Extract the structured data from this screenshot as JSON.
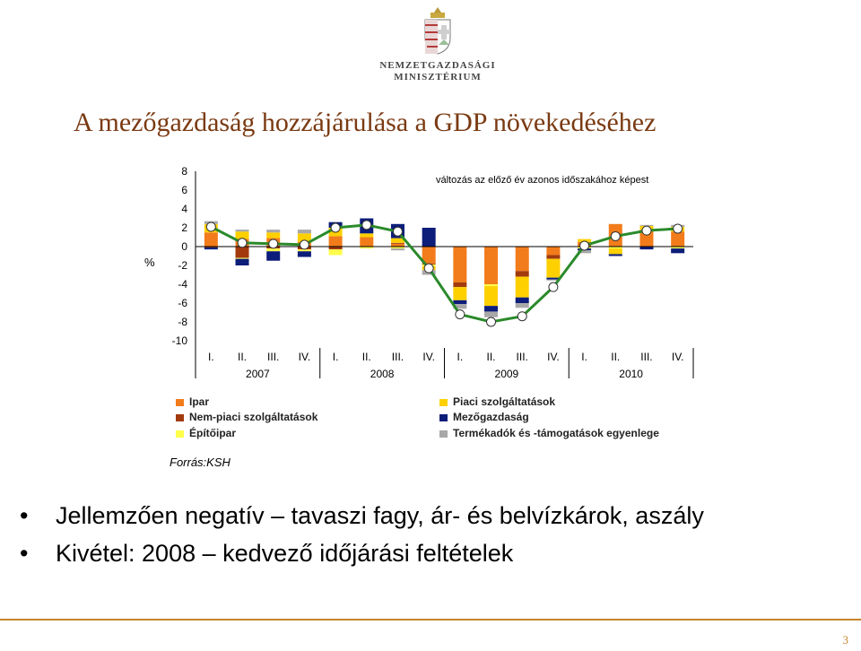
{
  "header": {
    "logo_line1": "NEMZETGAZDASÁGI",
    "logo_line2": "MINISZTÉRIUM",
    "title": "A mezőgazdaság hozzájárulása a GDP növekedéséhez"
  },
  "colors": {
    "ipar": "#f27c1b",
    "nempiaci": "#a23a0e",
    "epitoipar": "#ffff4a",
    "piaci": "#ffd000",
    "mezogazdasag": "#0c1d7a",
    "termekadok": "#a8a8a8",
    "line": "#2a8a2a",
    "title": "#7a3a12",
    "accent": "#c8842a"
  },
  "chart_data": {
    "type": "bar",
    "stacked": true,
    "title": "változás az előző év azonos időszakához képest",
    "ylabel": "%",
    "ylim": [
      -10,
      8
    ],
    "yticks": [
      8,
      6,
      4,
      2,
      0,
      -2,
      -4,
      -6,
      -8,
      -10
    ],
    "categories": [
      "I.",
      "II.",
      "III.",
      "IV.",
      "I.",
      "II.",
      "III.",
      "IV.",
      "I.",
      "II.",
      "III.",
      "IV.",
      "I.",
      "II.",
      "III.",
      "IV."
    ],
    "years": [
      "2007",
      "2008",
      "2009",
      "2010"
    ],
    "series": [
      {
        "name": "Ipar",
        "key": "ipar",
        "values": [
          1.5,
          0.8,
          0.9,
          0.5,
          1.1,
          1.0,
          0.3,
          -1.8,
          -3.8,
          -4.0,
          -2.6,
          -0.9,
          0.5,
          2.4,
          1.8,
          1.6
        ]
      },
      {
        "name": "Nem-piaci szolgáltatások",
        "key": "nempiaci",
        "values": [
          -0.1,
          -1.2,
          -0.2,
          -0.3,
          -0.3,
          0.0,
          0.1,
          -0.1,
          -0.5,
          0.0,
          -0.6,
          -0.4,
          0.0,
          0.0,
          0.0,
          0.0
        ]
      },
      {
        "name": "Építőipar",
        "key": "epitoipar",
        "values": [
          0.0,
          -0.1,
          -0.3,
          -0.2,
          -0.6,
          -0.2,
          -0.2,
          -0.2,
          0.0,
          -0.2,
          0.0,
          0.0,
          -0.2,
          -0.2,
          0.0,
          -0.2
        ]
      },
      {
        "name": "Piaci szolgáltatások",
        "key": "piaci",
        "values": [
          0.9,
          0.8,
          0.6,
          0.9,
          0.9,
          0.4,
          0.5,
          -0.4,
          -1.4,
          -2.1,
          -2.2,
          -2.0,
          0.3,
          -0.6,
          0.4,
          0.5
        ]
      },
      {
        "name": "Mezőgazdaság",
        "key": "mezogazdasag",
        "values": [
          -0.2,
          -0.7,
          -1.0,
          -0.6,
          0.6,
          1.6,
          1.5,
          2.0,
          -0.4,
          -0.6,
          -0.6,
          -0.2,
          -0.2,
          -0.2,
          -0.3,
          -0.5
        ]
      },
      {
        "name": "Termékadók és -támogatások egyenlege",
        "key": "termekadok",
        "values": [
          0.3,
          0.2,
          0.3,
          0.4,
          0.0,
          0.0,
          -0.2,
          -0.5,
          -0.5,
          -0.6,
          -0.5,
          -0.1,
          -0.3,
          0.0,
          0.1,
          0.2
        ]
      }
    ],
    "gdp_line": [
      2.1,
      0.4,
      0.3,
      0.2,
      2.0,
      2.3,
      1.6,
      -2.3,
      -7.2,
      -8.0,
      -7.4,
      -4.3,
      0.1,
      1.1,
      1.7,
      1.9
    ],
    "legend_position": "bottom",
    "grid": false
  },
  "source": "Forrás:KSH",
  "bullets": [
    "Jellemzően negatív – tavaszi fagy, ár- és belvízkárok, aszály",
    "Kivétel: 2008 – kedvező időjárási feltételek"
  ],
  "page_number": "3"
}
